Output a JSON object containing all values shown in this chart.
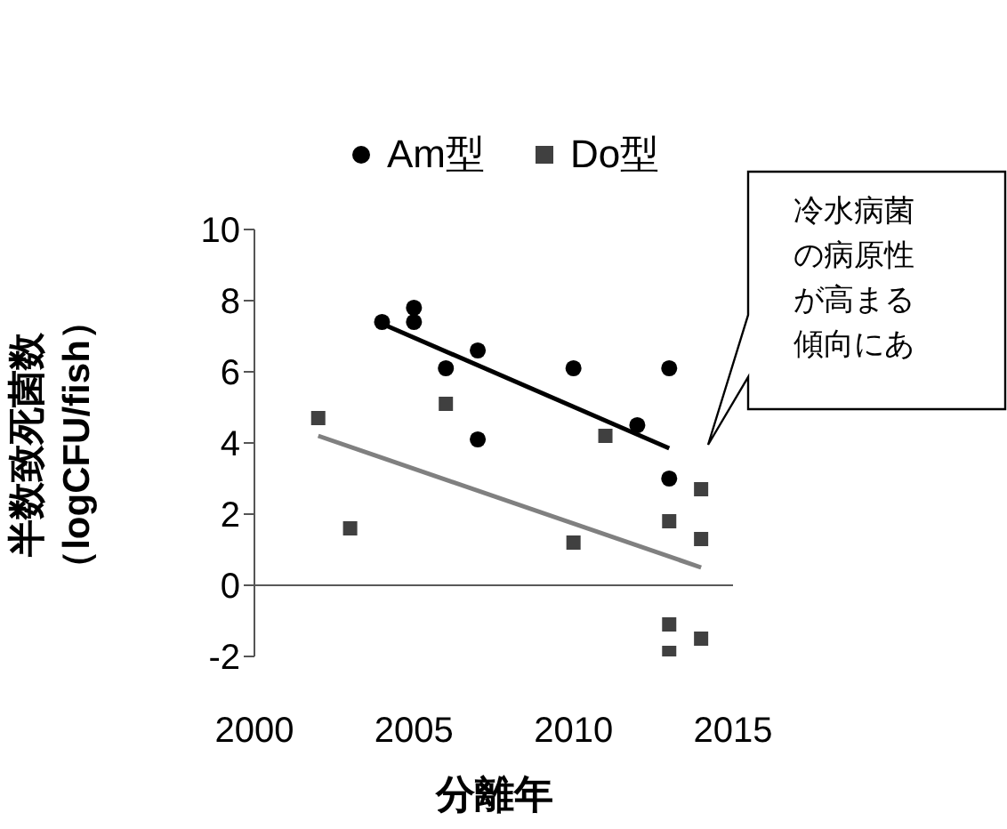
{
  "chart_data": {
    "type": "scatter",
    "xlabel": "分離年",
    "ylabel": "半数致死菌数（logCFU/fish）",
    "xlim": [
      2000,
      2015
    ],
    "xticks": [
      2000,
      2005,
      2010,
      2015
    ],
    "ylim": [
      -2,
      10
    ],
    "yticks": [
      -2,
      0,
      2,
      4,
      6,
      8,
      10
    ],
    "legend": "top",
    "grid": false,
    "ref_lines": [
      {
        "axis": "y",
        "value": 0,
        "color": "#595959"
      }
    ],
    "annotations": [
      "冷水病菌の病原性が高まる傾向にあ"
    ],
    "series": [
      {
        "name": "Am型",
        "marker": "circle",
        "color": "#000000",
        "x": [
          2004,
          2005,
          2005,
          2006,
          2007,
          2007,
          2010,
          2012,
          2013,
          2013
        ],
        "values": [
          7.4,
          7.8,
          7.4,
          6.1,
          6.6,
          4.1,
          6.1,
          4.5,
          6.1,
          3.0
        ]
      },
      {
        "name": "Do型",
        "marker": "square",
        "color": "#404040",
        "x": [
          2002,
          2003,
          2006,
          2010,
          2011,
          2013,
          2014,
          2014,
          2013,
          2013,
          2014
        ],
        "values": [
          4.7,
          1.6,
          5.1,
          1.2,
          4.2,
          1.8,
          2.7,
          1.3,
          -1.1,
          -1.9,
          -1.5
        ]
      },
      {
        "type": "line",
        "color": "#000000",
        "x": [
          2004,
          2013
        ],
        "values": [
          7.35,
          3.85
        ]
      },
      {
        "type": "line",
        "color": "#808080",
        "x": [
          2002,
          2014
        ],
        "values": [
          4.2,
          0.5
        ]
      }
    ]
  }
}
